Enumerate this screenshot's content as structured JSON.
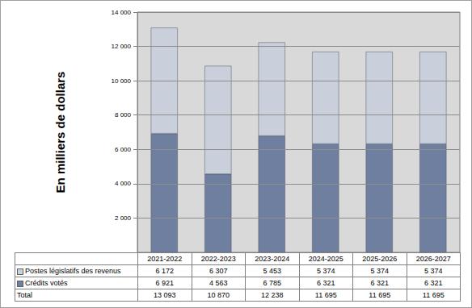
{
  "chart_data": {
    "type": "bar",
    "stacked": true,
    "y_label": "En milliers de dollars",
    "categories": [
      "2021-2022",
      "2022-2023",
      "2023-2024",
      "2024-2025",
      "2025-2026",
      "2026-2027"
    ],
    "series": [
      {
        "name": "Crédits votés",
        "color": "#6f7f9f",
        "values": [
          6921,
          4563,
          6785,
          6321,
          6321,
          6321
        ],
        "value_labels": [
          "6 921",
          "4 563",
          "6 785",
          "6 321",
          "6 321",
          "6 321"
        ]
      },
      {
        "name": "Postes législatifs des revenus",
        "color": "#c9cfdb",
        "values": [
          6172,
          6307,
          5453,
          5374,
          5374,
          5374
        ],
        "value_labels": [
          "6 172",
          "6 307",
          "5 453",
          "5 374",
          "5 374",
          "5 374"
        ]
      }
    ],
    "total": {
      "name": "Total",
      "values": [
        13093,
        10870,
        12238,
        11695,
        11695,
        11695
      ],
      "value_labels": [
        "13 093",
        "10 870",
        "12 238",
        "11 695",
        "11 695",
        "11 695"
      ]
    },
    "ylim": [
      0,
      14000
    ],
    "yticks": [
      {
        "value": 2000,
        "label": "2 000"
      },
      {
        "value": 4000,
        "label": "4 000"
      },
      {
        "value": 6000,
        "label": "6 000"
      },
      {
        "value": 8000,
        "label": "8 000"
      },
      {
        "value": 10000,
        "label": "10 000"
      },
      {
        "value": 12000,
        "label": "12 000"
      },
      {
        "value": 14000,
        "label": "14 000"
      }
    ],
    "grid": true
  }
}
